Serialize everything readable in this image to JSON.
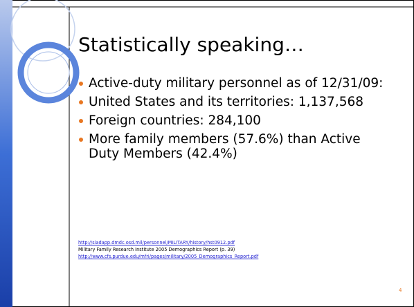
{
  "slide": {
    "title": "Statistically speaking…",
    "bullets": [
      "Active-duty military personnel as of 12/31/09:",
      "United States and its territories: 1,137,568",
      "Foreign countries: 284,100",
      "More family members (57.6%) than Active Duty Members (42.4%)"
    ],
    "sources": [
      "http://siadapp.dmdc.osd.mil/personnel/MILITARY/history/hst0912.pdf",
      "Military Family Research Institute 2005 Demographics Report (p. 39)",
      "http://www.cfs.purdue.edu/mfri/pages/military/2005_Demographics_Report.pdf"
    ],
    "page_number": "4"
  }
}
